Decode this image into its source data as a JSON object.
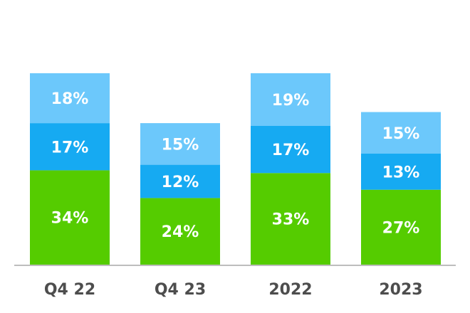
{
  "chart_data": {
    "type": "bar",
    "stacked": true,
    "categories": [
      "Q4 22",
      "Q4 23",
      "2022",
      "2023"
    ],
    "series": [
      {
        "values": [
          34,
          24,
          33,
          27
        ],
        "labels": [
          "34%",
          "24%",
          "33%",
          "27%"
        ],
        "color": "#55cc00"
      },
      {
        "values": [
          17,
          12,
          17,
          13
        ],
        "labels": [
          "17%",
          "12%",
          "17%",
          "13%"
        ],
        "color": "#16aaf2"
      },
      {
        "values": [
          18,
          15,
          19,
          15
        ],
        "labels": [
          "18%",
          "15%",
          "19%",
          "15%"
        ],
        "color": "#6cc8fb"
      }
    ],
    "title": "",
    "xlabel": "",
    "ylabel": "",
    "ylim": [
      0,
      80
    ],
    "grid": false,
    "legend": "none",
    "colors": {
      "baseline": "#bdbdbd",
      "category_text": "#4d4d4d",
      "segment_text": "#ffffff"
    }
  }
}
